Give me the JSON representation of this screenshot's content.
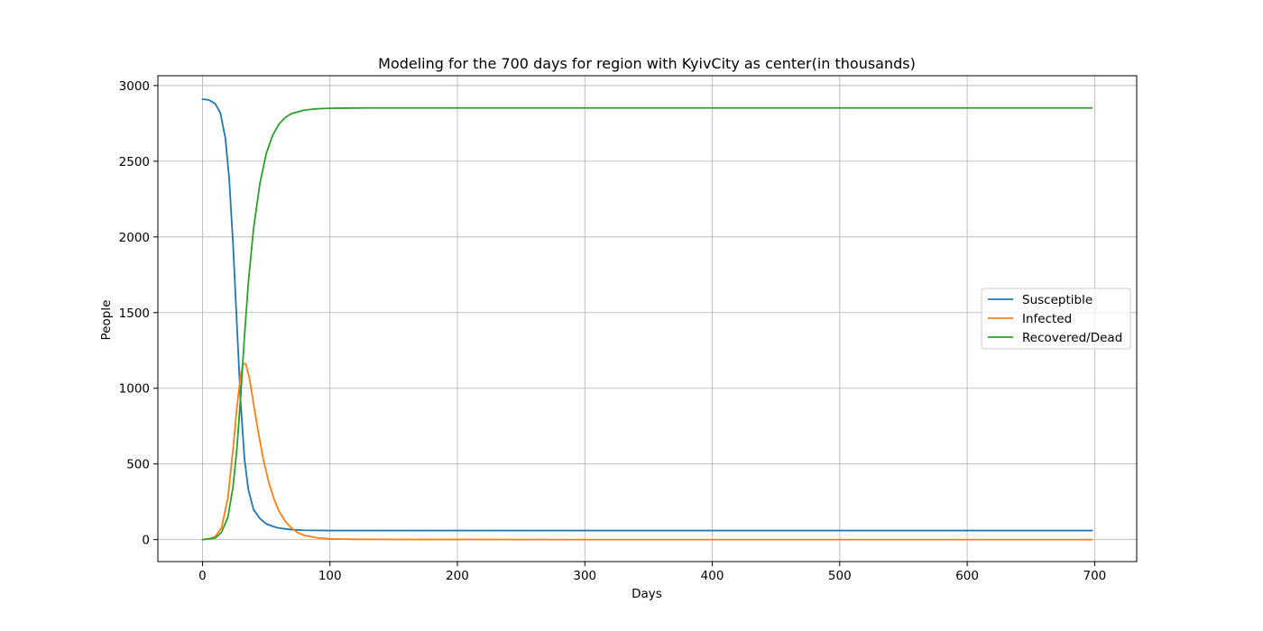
{
  "chart_data": {
    "type": "line",
    "title": "Modeling for the 700 days for region with KyivCity as center(in thousands)",
    "xlabel": "Days",
    "ylabel": "People",
    "xlim": [
      -35,
      733
    ],
    "ylim": [
      -145,
      3065
    ],
    "xticks": [
      0,
      100,
      200,
      300,
      400,
      500,
      600,
      700
    ],
    "yticks": [
      0,
      500,
      1000,
      1500,
      2000,
      2500,
      3000
    ],
    "grid": true,
    "legend_position": "center-right",
    "series": [
      {
        "name": "Susceptible",
        "color": "#1f77b4",
        "x": [
          0,
          5,
          10,
          14,
          18,
          21,
          24,
          27,
          30,
          33,
          36,
          40,
          45,
          50,
          55,
          60,
          70,
          80,
          100,
          150,
          300,
          500,
          698
        ],
        "y": [
          2910,
          2905,
          2880,
          2820,
          2650,
          2380,
          1950,
          1420,
          900,
          530,
          330,
          200,
          140,
          105,
          88,
          76,
          66,
          62,
          60,
          60,
          60,
          60,
          60
        ]
      },
      {
        "name": "Infected",
        "color": "#ff7f0e",
        "x": [
          0,
          5,
          10,
          15,
          20,
          24,
          27,
          30,
          32,
          34,
          37,
          40,
          44,
          48,
          52,
          56,
          60,
          65,
          70,
          75,
          80,
          90,
          100,
          120,
          150,
          300,
          500,
          698
        ],
        "y": [
          1,
          5,
          20,
          80,
          280,
          600,
          870,
          1090,
          1165,
          1160,
          1060,
          900,
          700,
          520,
          380,
          270,
          190,
          120,
          75,
          45,
          28,
          12,
          5,
          2,
          1,
          0,
          0,
          0
        ]
      },
      {
        "name": "Recovered/Dead",
        "color": "#2ca02c",
        "x": [
          0,
          10,
          15,
          20,
          24,
          27,
          30,
          33,
          36,
          40,
          45,
          50,
          55,
          60,
          65,
          70,
          80,
          90,
          100,
          110,
          130,
          150,
          300,
          500,
          698
        ],
        "y": [
          0,
          10,
          50,
          150,
          350,
          600,
          950,
          1350,
          1700,
          2050,
          2350,
          2550,
          2670,
          2745,
          2790,
          2815,
          2838,
          2847,
          2850,
          2851,
          2852,
          2852,
          2852,
          2852,
          2852
        ]
      }
    ]
  }
}
